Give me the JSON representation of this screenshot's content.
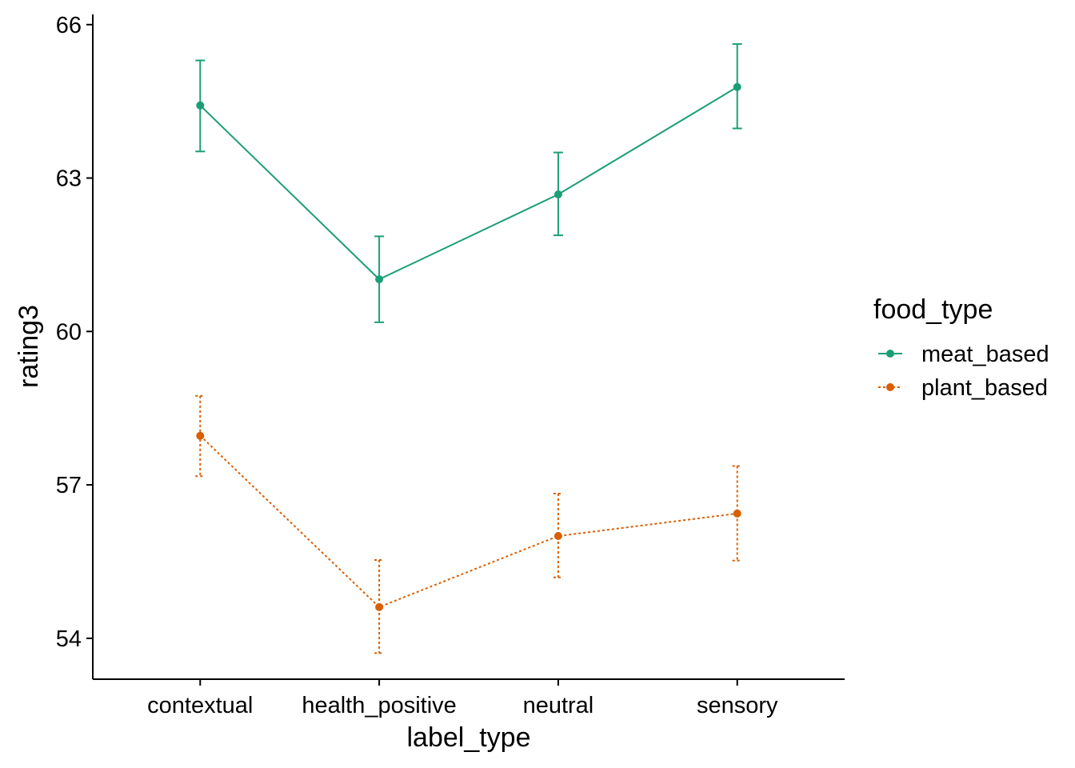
{
  "chart_data": {
    "type": "line",
    "title": "",
    "xlabel": "label_type",
    "ylabel": "rating3",
    "categories": [
      "contextual",
      "health_positive",
      "neutral",
      "sensory"
    ],
    "ylim": [
      53.2,
      66.2
    ],
    "yticks": [
      54,
      57,
      60,
      63,
      66
    ],
    "grid": false,
    "legend": {
      "title": "food_type",
      "placement": "right"
    },
    "error_bars": true,
    "series": [
      {
        "name": "meat_based",
        "color": "#1B9E77",
        "linestyle": "solid",
        "values": [
          64.42,
          61.02,
          62.68,
          64.78
        ],
        "lower": [
          63.52,
          60.18,
          61.88,
          63.97
        ],
        "upper": [
          65.3,
          61.86,
          63.5,
          65.62
        ]
      },
      {
        "name": "plant_based",
        "color": "#D95F02",
        "linestyle": "dotted",
        "values": [
          57.96,
          54.61,
          56.0,
          56.44
        ],
        "lower": [
          57.17,
          53.71,
          55.19,
          55.52
        ],
        "upper": [
          58.74,
          55.53,
          56.83,
          57.37
        ]
      }
    ]
  }
}
